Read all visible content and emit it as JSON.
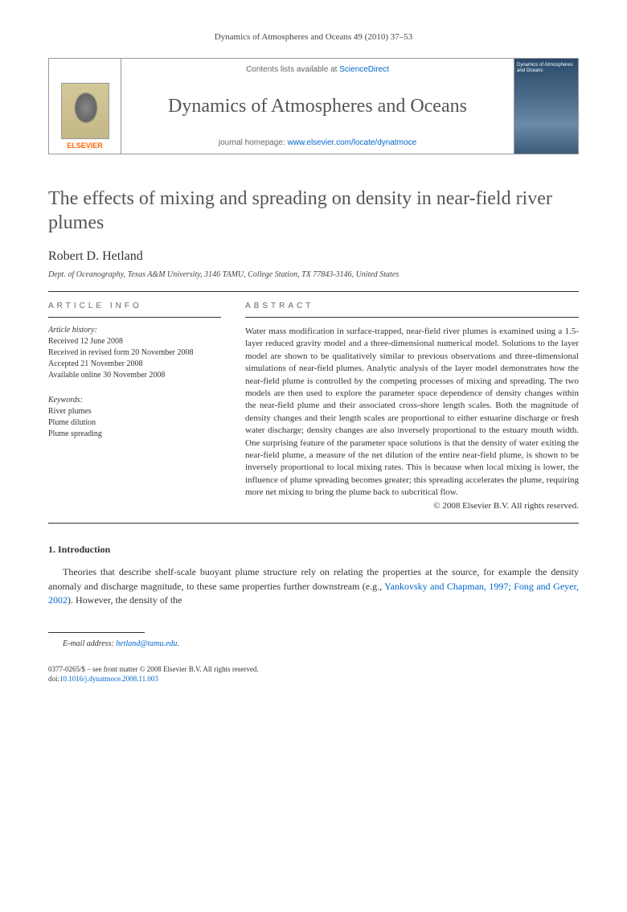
{
  "page_header": "Dynamics of Atmospheres and Oceans 49 (2010) 37–53",
  "journal_box": {
    "publisher": "ELSEVIER",
    "contents_prefix": "Contents lists available at ",
    "contents_link": "ScienceDirect",
    "journal_name": "Dynamics of Atmospheres and Oceans",
    "homepage_prefix": "journal homepage: ",
    "homepage_url": "www.elsevier.com/locate/dynatmoce",
    "cover_title": "Dynamics of Atmospheres and Oceans"
  },
  "article": {
    "title": "The effects of mixing and spreading on density in near-field river plumes",
    "author": "Robert D. Hetland",
    "affiliation": "Dept. of Oceanography, Texas A&M University, 3146 TAMU, College Station, TX 77843-3146, United States"
  },
  "info": {
    "heading": "ARTICLE INFO",
    "history_label": "Article history:",
    "history": [
      "Received 12 June 2008",
      "Received in revised form 20 November 2008",
      "Accepted 21 November 2008",
      "Available online 30 November 2008"
    ],
    "keywords_label": "Keywords:",
    "keywords": [
      "River plumes",
      "Plume dilution",
      "Plume spreading"
    ]
  },
  "abstract": {
    "heading": "ABSTRACT",
    "text": "Water mass modification in surface-trapped, near-field river plumes is examined using a 1.5-layer reduced gravity model and a three-dimensional numerical model. Solutions to the layer model are shown to be qualitatively similar to previous observations and three-dimensional simulations of near-field plumes. Analytic analysis of the layer model demonstrates how the near-field plume is controlled by the competing processes of mixing and spreading. The two models are then used to explore the parameter space dependence of density changes within the near-field plume and their associated cross-shore length scales. Both the magnitude of density changes and their length scales are proportional to either estuarine discharge or fresh water discharge; density changes are also inversely proportional to the estuary mouth width. One surprising feature of the parameter space solutions is that the density of water exiting the near-field plume, a measure of the net dilution of the entire near-field plume, is shown to be inversely proportional to local mixing rates. This is because when local mixing is lower, the influence of plume spreading becomes greater; this spreading accelerates the plume, requiring more net mixing to bring the plume back to subcritical flow.",
    "copyright": "© 2008 Elsevier B.V. All rights reserved."
  },
  "intro": {
    "heading": "1.  Introduction",
    "para_pre": "Theories that describe shelf-scale buoyant plume structure rely on relating the properties at the source, for example the density anomaly and discharge magnitude, to these same properties further downstream (e.g., ",
    "cite": "Yankovsky and Chapman, 1997; Fong and Geyer, 2002",
    "para_post": "). However, the density of the"
  },
  "footer": {
    "email_label": "E-mail address: ",
    "email": "hetland@tamu.edu",
    "issn_line": "0377-0265/$ – see front matter © 2008 Elsevier B.V. All rights reserved.",
    "doi_label": "doi:",
    "doi": "10.1016/j.dynatmoce.2008.11.003"
  }
}
